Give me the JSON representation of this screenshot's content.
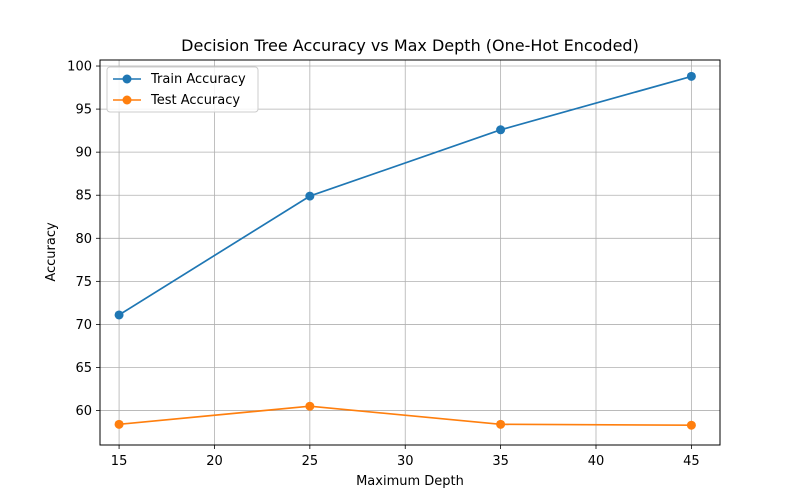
{
  "chart_data": {
    "type": "line",
    "title": "Decision Tree Accuracy vs Max Depth (One-Hot Encoded)",
    "xlabel": "Maximum Depth",
    "ylabel": "Accuracy",
    "x": [
      15,
      25,
      35,
      45
    ],
    "xlim": [
      14,
      46.5
    ],
    "ylim": [
      56,
      100.7
    ],
    "xticks": [
      15,
      20,
      25,
      30,
      35,
      40,
      45
    ],
    "yticks": [
      60,
      65,
      70,
      75,
      80,
      85,
      90,
      95,
      100
    ],
    "grid": true,
    "legend_position": "upper-left",
    "series": [
      {
        "name": "Train Accuracy",
        "color": "#1f77b4",
        "values": [
          71.1,
          84.9,
          92.6,
          98.8
        ]
      },
      {
        "name": "Test Accuracy",
        "color": "#ff7f0e",
        "values": [
          58.4,
          60.5,
          58.4,
          58.3
        ]
      }
    ]
  }
}
